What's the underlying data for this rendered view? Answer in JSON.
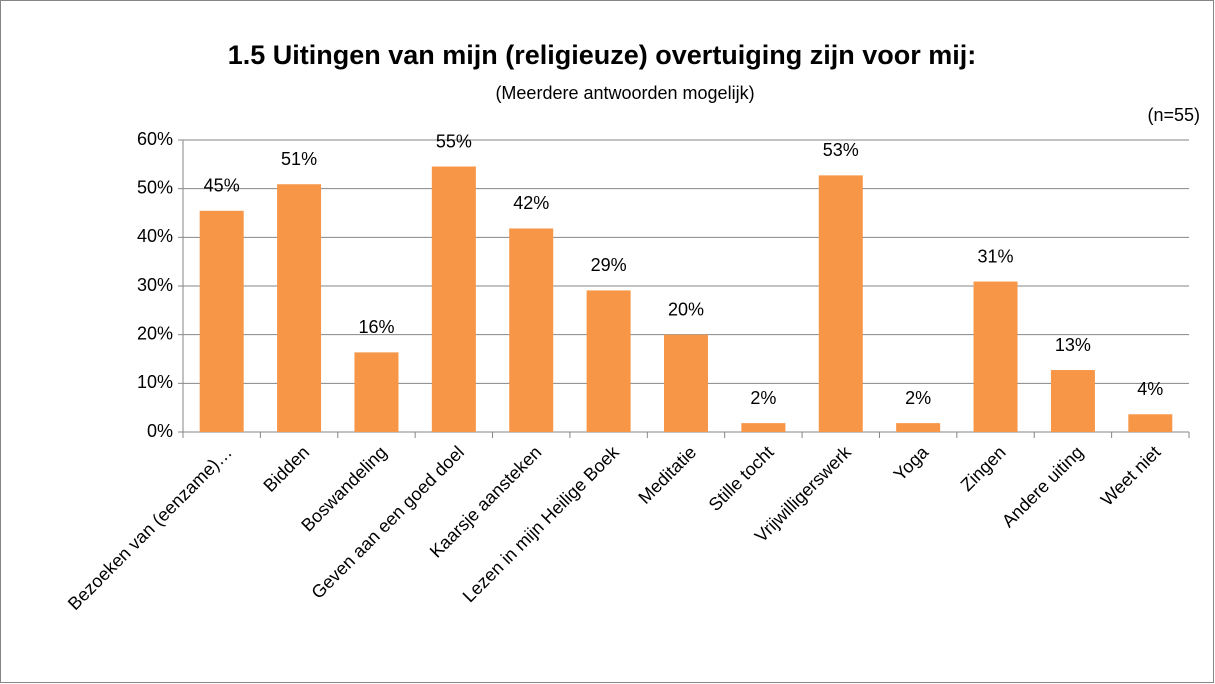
{
  "chart_data": {
    "type": "bar",
    "title": "1.5 Uitingen van mijn (religieuze) overtuiging zijn voor mij:",
    "subtitle": "(Meerdere antwoorden mogelijk)",
    "annotation": "(n=55)",
    "categories": [
      "Bezoeken van (eenzame)…",
      "Bidden",
      "Boswandeling",
      "Geven aan een goed doel",
      "Kaarsje aansteken",
      "Lezen in mijn Heilige Boek",
      "Meditatie",
      "Stille tocht",
      "Vrijwilligerswerk",
      "Yoga",
      "Zingen",
      "Andere uiting",
      "Weet niet"
    ],
    "values": [
      45.45,
      50.91,
      16.36,
      54.55,
      41.82,
      29.09,
      20,
      1.82,
      52.73,
      1.82,
      30.91,
      12.73,
      3.64
    ],
    "value_labels": [
      "45%",
      "51%",
      "16%",
      "55%",
      "42%",
      "29%",
      "20%",
      "2%",
      "53%",
      "2%",
      "31%",
      "13%",
      "4%"
    ],
    "color": "#f79646",
    "ylim": [
      0,
      60
    ],
    "yticks": [
      {
        "value": 0,
        "label": "0%"
      },
      {
        "value": 10,
        "label": "10%"
      },
      {
        "value": 20,
        "label": "20%"
      },
      {
        "value": 30,
        "label": "30%"
      },
      {
        "value": 40,
        "label": "40%"
      },
      {
        "value": 50,
        "label": "50%"
      },
      {
        "value": 60,
        "label": "60%"
      }
    ],
    "grid": true
  }
}
